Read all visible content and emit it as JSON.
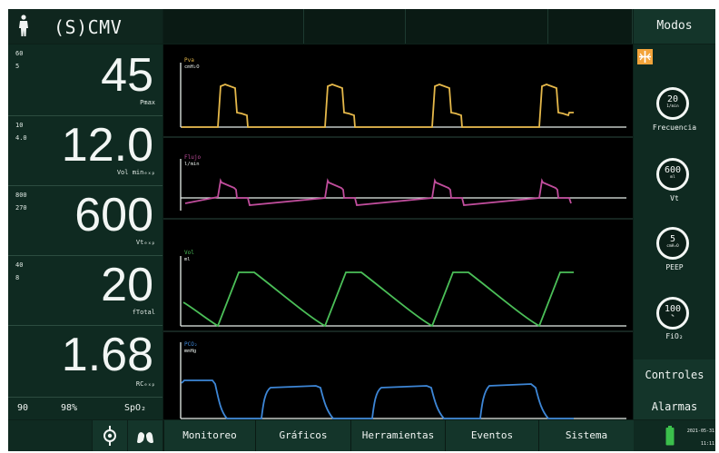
{
  "header": {
    "mode": "(S)CMV",
    "modes_button": "Modos"
  },
  "values": [
    {
      "upper": "60",
      "lower": "5",
      "value": "45",
      "unit": "Pmax"
    },
    {
      "upper": "10",
      "lower": "4.0",
      "value": "12.0",
      "unit": "Vol minₑₓₚ"
    },
    {
      "upper": "800",
      "lower": "270",
      "value": "600",
      "unit": "Vtₑₓₚ"
    },
    {
      "upper": "40",
      "lower": "8",
      "value": "20",
      "unit": "fTotal"
    },
    {
      "upper": "",
      "lower": "",
      "value": "1.68",
      "unit": "RCₑₓₚ"
    }
  ],
  "spo2": {
    "pr": "90",
    "percent": "98%",
    "label": "SpO₂"
  },
  "waveforms": [
    {
      "label": "Pva",
      "unit": "cmH₂O",
      "color": "#e5b84a"
    },
    {
      "label": "Flujo",
      "unit": "l/min",
      "color": "#c04d9c"
    },
    {
      "label": "Vol",
      "unit": "ml",
      "color": "#4bbf58"
    },
    {
      "label": "PCO₂",
      "unit": "mmHg",
      "color": "#3d86d6"
    }
  ],
  "controls": [
    {
      "value": "20",
      "unit": "1/min",
      "label": "Frecuencia"
    },
    {
      "value": "600",
      "unit": "ml",
      "label": "Vt"
    },
    {
      "value": "5",
      "unit": "cmH₂O",
      "label": "PEEP"
    },
    {
      "value": "100",
      "unit": "%",
      "label": "FiO₂"
    }
  ],
  "side_buttons": {
    "controles": "Controles",
    "alarmas": "Alarmas"
  },
  "tabs": [
    "Monitoreo",
    "Gráficos",
    "Herramientas",
    "Eventos",
    "Sistema"
  ],
  "status": {
    "date": "2021-05-31",
    "time": "11:11"
  },
  "colors": {
    "battery": "#3bbf4c",
    "lock": "#f3a43b"
  },
  "icons": {
    "person": "person-icon",
    "lungs": "lungs-icon",
    "nebulizer": "nebulizer-icon",
    "lock": "lock-icon",
    "battery": "battery-icon"
  }
}
